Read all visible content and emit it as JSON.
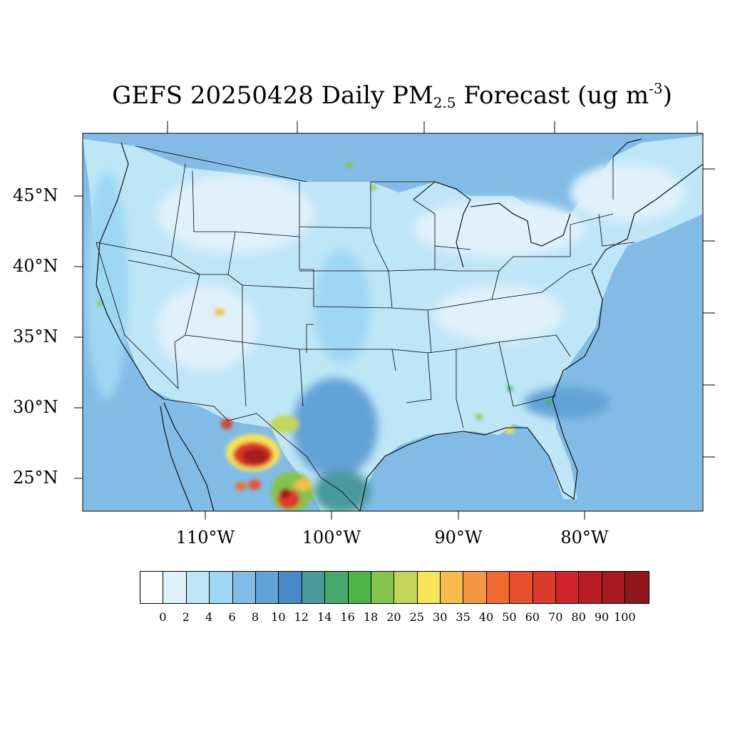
{
  "title": {
    "main": "GEFS 20250428 Daily PM",
    "sub": "2.5",
    "mid": " Forecast (ug m",
    "sup": "-3",
    "end": ")"
  },
  "lat_labels": [
    "45°N",
    "40°N",
    "35°N",
    "30°N",
    "25°N"
  ],
  "lon_labels": [
    "110°W",
    "100°W",
    "90°W",
    "80°W"
  ],
  "colorbar": {
    "labels": [
      "0",
      "2",
      "4",
      "6",
      "8",
      "10",
      "12",
      "14",
      "16",
      "18",
      "20",
      "25",
      "30",
      "35",
      "40",
      "50",
      "60",
      "70",
      "80",
      "90",
      "100"
    ],
    "colors": [
      "#ffffff",
      "#dff1fb",
      "#bfe6f7",
      "#9fd7f3",
      "#82bce6",
      "#63a2d6",
      "#4a88c8",
      "#4a9a9c",
      "#46a86c",
      "#4db548",
      "#86c34c",
      "#c3d659",
      "#f7e458",
      "#f7bd4c",
      "#f59640",
      "#f06a30",
      "#e8502d",
      "#dc3a2a",
      "#d0232b",
      "#b81c25",
      "#a71a22",
      "#8f161c"
    ]
  }
}
